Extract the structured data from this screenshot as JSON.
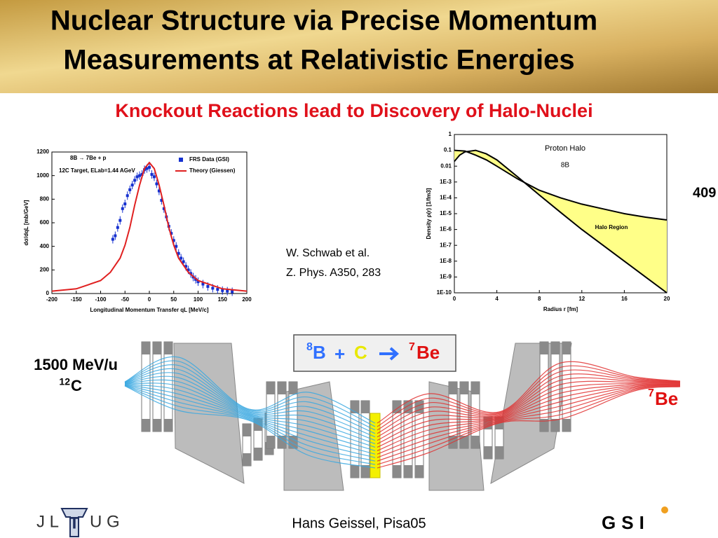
{
  "title_lines": [
    "Nuclear Structure via Precise Momentum",
    "Measurements at Relativistic Energies"
  ],
  "subtitle": "Knockout Reactions lead to Discovery of Halo-Nuclei",
  "left_chart": {
    "type": "scatter",
    "xlim": [
      -200,
      200
    ],
    "ylim": [
      0,
      1200
    ],
    "xticks": [
      -200,
      -150,
      -100,
      -50,
      0,
      50,
      100,
      150,
      200
    ],
    "yticks": [
      0,
      200,
      400,
      600,
      800,
      1000,
      1200
    ],
    "x_label": "Longitudinal Momentum Transfer qL [MeV/c]",
    "y_label": "dσ/dqL [mb/GeV]",
    "annotations": [
      "8B → 7Be + p",
      "12C Target, ELab=1.44 AGeV"
    ],
    "legend_position": "upper right",
    "series": [
      {
        "name": "FRS Data (GSI)",
        "color": "#1530d0",
        "type": "scatter",
        "x": [
          -75,
          -70,
          -65,
          -60,
          -55,
          -50,
          -45,
          -40,
          -35,
          -30,
          -25,
          -20,
          -15,
          -10,
          -5,
          0,
          5,
          10,
          15,
          20,
          25,
          30,
          35,
          40,
          45,
          50,
          55,
          60,
          65,
          70,
          75,
          80,
          85,
          90,
          95,
          100,
          110,
          120,
          130,
          140,
          150,
          160,
          170
        ],
        "values": [
          460,
          490,
          560,
          620,
          720,
          760,
          830,
          880,
          920,
          960,
          990,
          1000,
          1010,
          1050,
          1060,
          1070,
          1010,
          990,
          930,
          870,
          790,
          720,
          650,
          570,
          510,
          450,
          400,
          340,
          300,
          270,
          230,
          200,
          170,
          140,
          120,
          100,
          80,
          60,
          45,
          35,
          25,
          20,
          15
        ]
      },
      {
        "name": "Theory (Giessen)",
        "color": "#e02020",
        "type": "line",
        "x": [
          -200,
          -150,
          -100,
          -80,
          -60,
          -50,
          -40,
          -30,
          -20,
          -10,
          0,
          10,
          20,
          30,
          40,
          50,
          60,
          80,
          100,
          150,
          200
        ],
        "values": [
          20,
          40,
          110,
          180,
          300,
          410,
          560,
          750,
          920,
          1060,
          1110,
          1060,
          920,
          750,
          560,
          410,
          300,
          180,
          110,
          40,
          20
        ]
      }
    ]
  },
  "reference": [
    "W. Schwab et al.",
    "Z. Phys. A350, 283"
  ],
  "right_chart": {
    "type": "line",
    "yscale": "log",
    "xlim": [
      0,
      20
    ],
    "ylim": [
      1e-10,
      1
    ],
    "xticks": [
      0,
      4,
      8,
      12,
      16,
      20
    ],
    "yticks": [
      1,
      0.1,
      0.01,
      {
        "value": 0.001,
        "label": "1E-3"
      },
      {
        "value": 0.0001,
        "label": "1E-4"
      },
      {
        "value": 1e-05,
        "label": "1E-5"
      },
      {
        "value": 1e-06,
        "label": "1E-6"
      },
      {
        "value": 1e-07,
        "label": "1E-7"
      },
      {
        "value": 1e-08,
        "label": "1E-8"
      },
      {
        "value": 1e-09,
        "label": "1E-9"
      },
      {
        "value": 1e-10,
        "label": "1E-10"
      }
    ],
    "x_label": "Radius r [fm]",
    "y_label": "Density ρ(r) [1/fm3]",
    "annotations": [
      "Proton Halo",
      "8B",
      "Halo Region"
    ],
    "fill_between_color": "#ffff88",
    "series": [
      {
        "color": "#000000",
        "x": [
          0,
          1,
          2,
          3,
          4,
          6,
          8,
          10,
          12,
          14,
          16,
          18,
          20
        ],
        "values": [
          0.1,
          0.09,
          0.05,
          0.025,
          0.01,
          0.0015,
          0.0003,
          0.0001,
          4e-05,
          2e-05,
          1e-05,
          6e-06,
          4e-06
        ]
      },
      {
        "color": "#000000",
        "x": [
          0,
          0.5,
          1,
          2,
          3,
          4,
          6,
          8,
          10,
          12,
          14,
          16,
          18,
          20
        ],
        "values": [
          0.02,
          0.05,
          0.08,
          0.1,
          0.06,
          0.025,
          0.002,
          0.00015,
          1.2e-05,
          1e-06,
          1e-07,
          1e-08,
          1e-09,
          1e-10
        ]
      }
    ]
  },
  "edge_text": "409",
  "beam": {
    "energy": "1500 MeV/u",
    "mass": "12",
    "element": "C"
  },
  "reaction": {
    "projectile_mass": "8",
    "projectile": "B",
    "plus": "+",
    "target": "C",
    "product_mass": "7",
    "product": "Be"
  },
  "fragment": {
    "mass": "7",
    "element": "Be"
  },
  "footer": "Hans Geissel,  Pisa05",
  "logo_left": [
    "J L",
    "T",
    "U G"
  ],
  "logo_right": "GSI"
}
